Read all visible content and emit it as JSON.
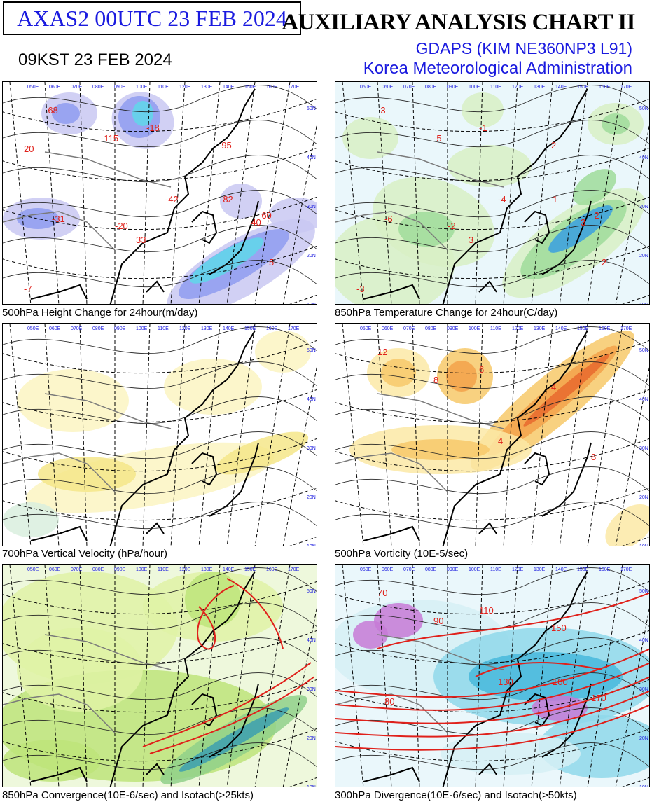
{
  "header": {
    "product_id": "AXAS2  00UTC 23 FEB 2024",
    "local_time": "09KST 23 FEB 2024",
    "chart_title": "AUXILIARY ANALYSIS CHART II",
    "model": "GDAPS (KIM NE360NP3 L91)",
    "agency": "Korea Meteorological Administration"
  },
  "panels": [
    {
      "caption": "500hPa Height Change for 24hour(m/day)",
      "fill_colors": [
        "#c9c8f2",
        "#8f9cf0",
        "#5fd8ea",
        "#2aa8e8"
      ],
      "labels": [
        "-68",
        "-115",
        "-18",
        "-42",
        "-95",
        "-60",
        "-82",
        "-31",
        "33",
        "5",
        "-7",
        "-20",
        "-40",
        "20"
      ]
    },
    {
      "caption": "850hPa Temperature Change for 24hour(C/day)",
      "fill_colors": [
        "#d8f0c4",
        "#9fdc9a",
        "#55c27a",
        "#3aa0e0"
      ],
      "labels": [
        "-3",
        "-5",
        "-1",
        "-4",
        "2",
        "-2",
        "1",
        "-6",
        "3",
        "2",
        "-3",
        "-2",
        "3"
      ]
    },
    {
      "caption": "700hPa Vertical Velocity (hPa/hour)",
      "fill_colors": [
        "#fbf5c2",
        "#f4e68a",
        "#d9eede"
      ],
      "labels": []
    },
    {
      "caption": "500hPa Vorticity (10E-5/sec)",
      "fill_colors": [
        "#fbe9a6",
        "#f7c96a",
        "#f3a24a",
        "#e86a2e"
      ],
      "labels": [
        "12",
        "8",
        "6",
        "4",
        "4",
        "8"
      ]
    },
    {
      "caption": "850hPa Convergence(10E-6/sec) and Isotach(>25kts)",
      "fill_colors": [
        "#dff2a6",
        "#bde47a",
        "#8fd08a",
        "#3c9fb0"
      ],
      "labels": []
    },
    {
      "caption": "300hPa Divergence(10E-6/sec) and Isotach(>50kts)",
      "fill_colors": [
        "#d6f0f5",
        "#8fd8ea",
        "#48b8dc",
        "#c77ad6"
      ],
      "labels": [
        "70",
        "90",
        "110",
        "130",
        "150",
        "170",
        "100",
        "80"
      ]
    }
  ],
  "map_labels": {
    "lon_ticks": [
      "050E",
      "060E",
      "070E",
      "080E",
      "090E",
      "100E",
      "110E",
      "120E",
      "130E",
      "140E",
      "150E",
      "160E",
      "170E"
    ],
    "lat_ticks": [
      "50N",
      "40N",
      "30N",
      "20N",
      "10N"
    ]
  }
}
